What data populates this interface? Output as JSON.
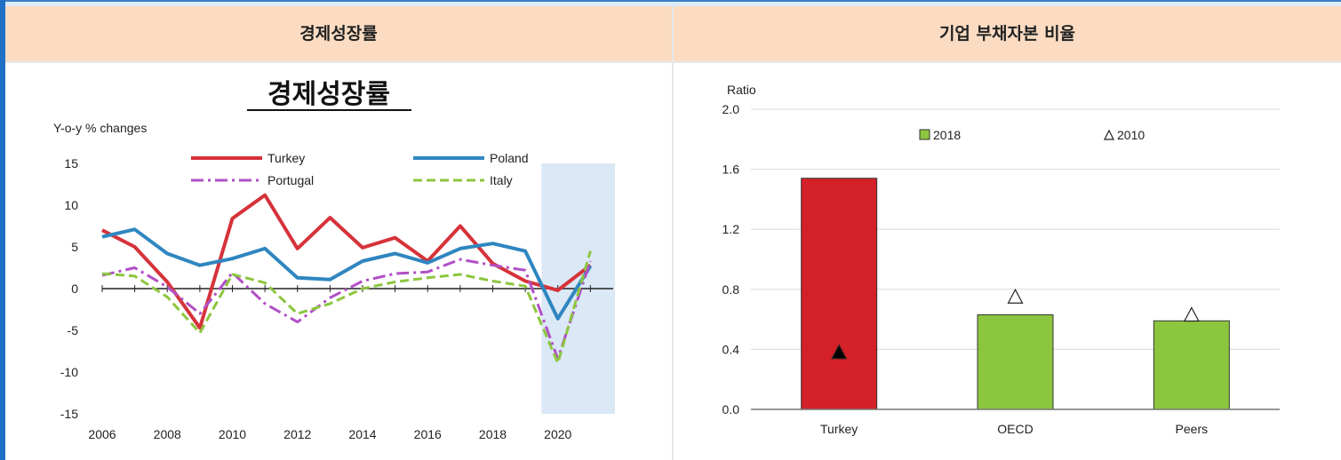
{
  "table_headers": {
    "left": "경제성장률",
    "right": "기업 부채자본 비율"
  },
  "chart_data": [
    {
      "type": "line",
      "title": "경제성장률",
      "ylabel": "Y-o-y % changes",
      "ylim": [
        -15,
        15
      ],
      "yticks": [
        "15",
        "10",
        "5",
        "0",
        "-5",
        "-10",
        "-15"
      ],
      "xticks": [
        "2006",
        "2008",
        "2010",
        "2012",
        "2014",
        "2016",
        "2018",
        "2020"
      ],
      "x": [
        2006,
        2007,
        2008,
        2009,
        2010,
        2011,
        2012,
        2013,
        2014,
        2015,
        2016,
        2017,
        2018,
        2019,
        2020,
        2021
      ],
      "shaded_region": [
        2019.5,
        2021.5
      ],
      "series": [
        {
          "name": "Turkey",
          "color": "#d6323a",
          "style": "solid",
          "values": [
            7.0,
            5.0,
            0.8,
            -4.7,
            8.4,
            11.2,
            4.8,
            8.5,
            4.9,
            6.1,
            3.3,
            7.5,
            3.0,
            0.9,
            -0.2,
            2.8
          ]
        },
        {
          "name": "Poland",
          "color": "#2f86c0",
          "style": "solid",
          "values": [
            6.2,
            7.1,
            4.2,
            2.8,
            3.6,
            4.8,
            1.3,
            1.1,
            3.3,
            4.2,
            3.1,
            4.8,
            5.4,
            4.5,
            -3.6,
            2.7
          ]
        },
        {
          "name": "Portugal",
          "color": "#b14fc5",
          "style": "dashdot",
          "values": [
            1.6,
            2.5,
            0.2,
            -3.0,
            1.9,
            -1.8,
            -4.0,
            -1.1,
            0.9,
            1.8,
            2.0,
            3.5,
            2.8,
            2.2,
            -8.4,
            3.3
          ]
        },
        {
          "name": "Italy",
          "color": "#8cc63f",
          "style": "dashed",
          "values": [
            1.8,
            1.5,
            -1.0,
            -5.3,
            1.7,
            0.7,
            -3.0,
            -1.8,
            0.0,
            0.8,
            1.3,
            1.7,
            0.9,
            0.3,
            -8.9,
            4.5
          ]
        }
      ]
    },
    {
      "type": "bar",
      "ylabel": "Ratio",
      "ylim": [
        0,
        2.0
      ],
      "yticks": [
        "2.0",
        "1.6",
        "1.2",
        "0.8",
        "0.4",
        "0.0"
      ],
      "categories": [
        "Turkey",
        "OECD",
        "Peers"
      ],
      "series": [
        {
          "name": "2018",
          "type": "bar",
          "values": [
            1.54,
            0.63,
            0.59
          ],
          "colors": [
            "#d42027",
            "#8cc63f",
            "#8cc63f"
          ]
        },
        {
          "name": "2010",
          "type": "marker",
          "marker": "triangle",
          "values": [
            0.38,
            0.75,
            0.63
          ],
          "fills": [
            "#000000",
            "#ffffff",
            "#ffffff"
          ]
        }
      ]
    }
  ]
}
